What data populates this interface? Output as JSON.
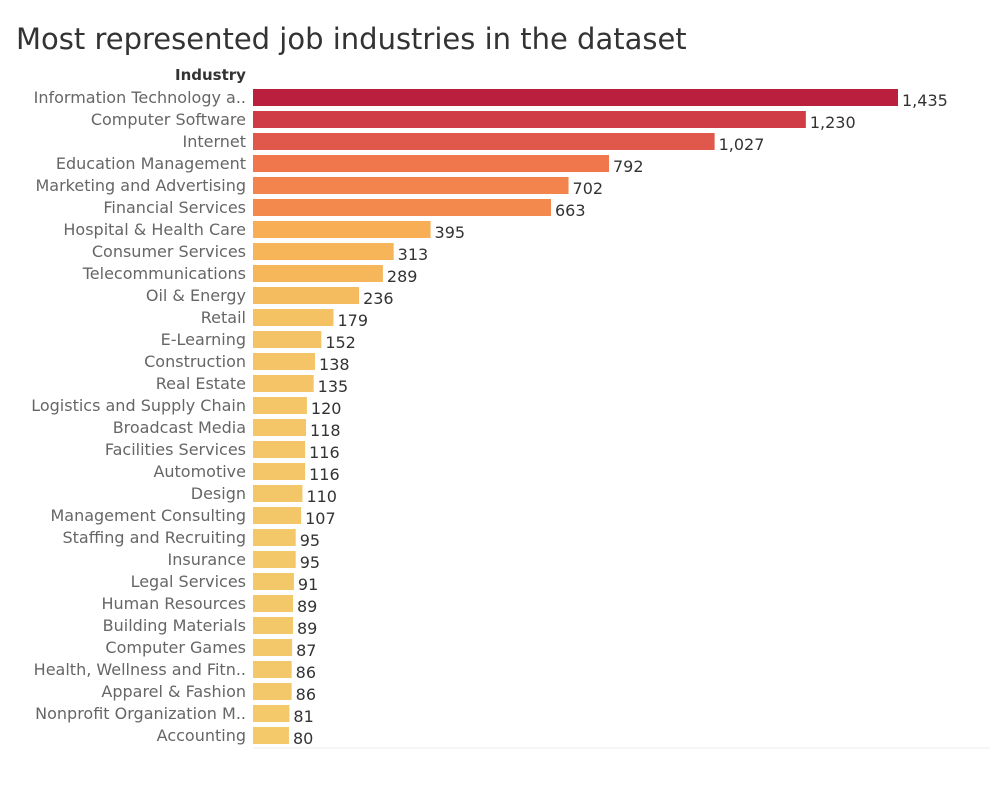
{
  "title": "Most represented job industries in the dataset",
  "chart_data": {
    "type": "bar",
    "orientation": "horizontal",
    "title": "Most represented job industries in the dataset",
    "category_axis_label": "Industry",
    "xlabel": "",
    "ylabel": "Industry",
    "grid": false,
    "legend": "none",
    "xlim": [
      0,
      1435
    ],
    "categories": [
      "Information Technology a..",
      "Computer Software",
      "Internet",
      "Education Management",
      "Marketing and Advertising",
      "Financial Services",
      "Hospital & Health Care",
      "Consumer Services",
      "Telecommunications",
      "Oil & Energy",
      "Retail",
      "E-Learning",
      "Construction",
      "Real Estate",
      "Logistics and Supply Chain",
      "Broadcast Media",
      "Facilities Services",
      "Automotive",
      "Design",
      "Management Consulting",
      "Staffing and Recruiting",
      "Insurance",
      "Legal Services",
      "Human Resources",
      "Building Materials",
      "Computer Games",
      "Health, Wellness and Fitn..",
      "Apparel & Fashion",
      "Nonprofit Organization M..",
      "Accounting"
    ],
    "values": [
      1435,
      1230,
      1027,
      792,
      702,
      663,
      395,
      313,
      289,
      236,
      179,
      152,
      138,
      135,
      120,
      118,
      116,
      116,
      110,
      107,
      95,
      95,
      91,
      89,
      89,
      87,
      86,
      86,
      81,
      80
    ],
    "value_labels": [
      "1,435",
      "1,230",
      "1,027",
      "792",
      "702",
      "663",
      "395",
      "313",
      "289",
      "236",
      "179",
      "152",
      "138",
      "135",
      "120",
      "118",
      "116",
      "116",
      "110",
      "107",
      "95",
      "95",
      "91",
      "89",
      "89",
      "87",
      "86",
      "86",
      "81",
      "80"
    ],
    "color_scale": [
      "#f3c96a",
      "#f8ac52",
      "#f27c4c",
      "#dc4f4b",
      "#bb1f3e"
    ]
  }
}
